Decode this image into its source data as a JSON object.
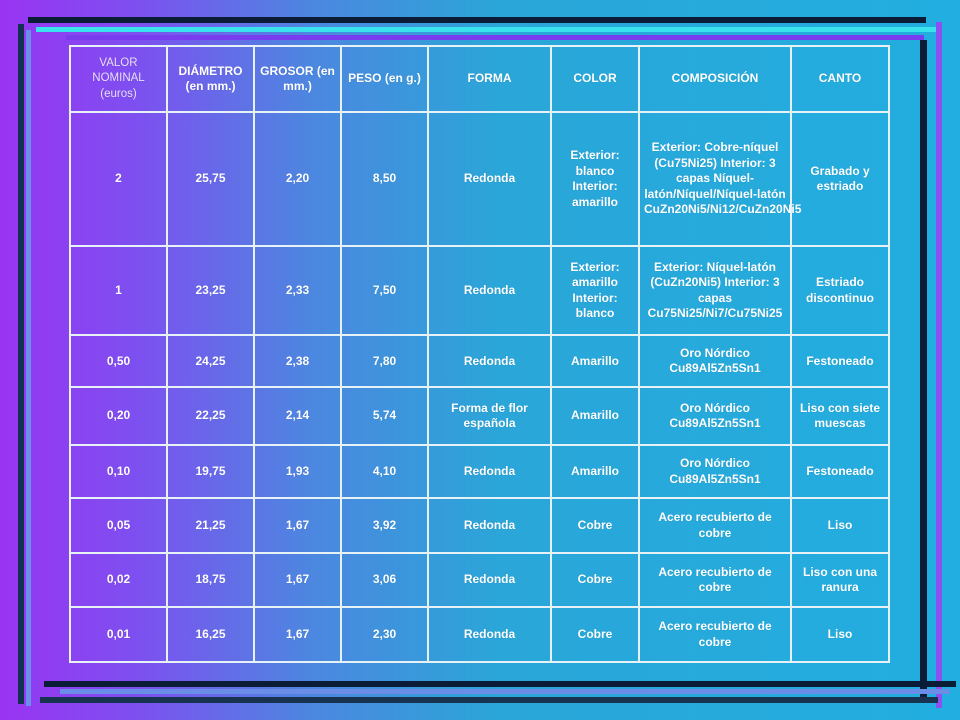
{
  "table": {
    "headers": [
      "VALOR NOMINAL (euros)",
      "DIÁMETRO (en mm.)",
      "GROSOR (en mm.)",
      "PESO (en g.)",
      "FORMA",
      "COLOR",
      "COMPOSICIÓN",
      "CANTO"
    ],
    "rows": [
      [
        "2",
        "25,75",
        "2,20",
        "8,50",
        "Redonda",
        "Exterior: blanco Interior: amarillo",
        "Exterior: Cobre-níquel (Cu75Ni25) Interior: 3 capas Níquel-latón/Níquel/Níquel-latón CuZn20Ni5/Ni12/CuZn20Ni5",
        "Grabado y estriado"
      ],
      [
        "1",
        "23,25",
        "2,33",
        "7,50",
        "Redonda",
        "Exterior: amarillo Interior: blanco",
        "Exterior: Níquel-latón (CuZn20Ni5) Interior: 3 capas Cu75Ni25/Ni7/Cu75Ni25",
        "Estriado discontinuo"
      ],
      [
        "0,50",
        "24,25",
        "2,38",
        "7,80",
        "Redonda",
        "Amarillo",
        "Oro Nórdico Cu89Al5Zn5Sn1",
        "Festoneado"
      ],
      [
        "0,20",
        "22,25",
        "2,14",
        "5,74",
        "Forma de flor española",
        "Amarillo",
        "Oro Nórdico Cu89Al5Zn5Sn1",
        "Liso con siete muescas"
      ],
      [
        "0,10",
        "19,75",
        "1,93",
        "4,10",
        "Redonda",
        "Amarillo",
        "Oro Nórdico Cu89Al5Zn5Sn1",
        "Festoneado"
      ],
      [
        "0,05",
        "21,25",
        "1,67",
        "3,92",
        "Redonda",
        "Cobre",
        "Acero recubierto de cobre",
        "Liso"
      ],
      [
        "0,02",
        "18,75",
        "1,67",
        "3,06",
        "Redonda",
        "Cobre",
        "Acero recubierto de cobre",
        "Liso con una ranura"
      ],
      [
        "0,01",
        "16,25",
        "1,67",
        "2,30",
        "Redonda",
        "Cobre",
        "Acero recubierto de cobre",
        "Liso"
      ]
    ]
  },
  "colors": {
    "background_left": "#9a34f2",
    "background_right": "#22aee0",
    "grid_line": "#e6f2f6",
    "text": "#ffffff"
  }
}
